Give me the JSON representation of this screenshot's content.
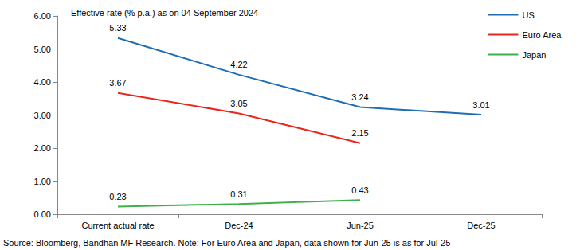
{
  "chart_data": {
    "type": "line",
    "title": "Effective rate (% p.a.) as on 04 September 2024",
    "annotations": [
      "Source: Bloomberg, Bandhan MF Research. Note: For Euro Area and Japan, data shown for Jun-25 is as for Jul-25"
    ],
    "categories": [
      "Current actual rate",
      "Dec-24",
      "Jun-25",
      "Dec-25"
    ],
    "series": [
      {
        "name": "US",
        "color": "#1F6DB5",
        "values": [
          5.33,
          4.22,
          3.24,
          3.01
        ]
      },
      {
        "name": "Euro Area",
        "color": "#E8261E",
        "values": [
          3.67,
          3.05,
          2.15,
          null
        ]
      },
      {
        "name": "Japan",
        "color": "#3DB04B",
        "values": [
          0.23,
          0.31,
          0.43,
          null
        ]
      }
    ],
    "ylim": [
      0,
      6
    ],
    "yticks": [
      {
        "value": 0,
        "label": "0.00"
      },
      {
        "value": 1,
        "label": "1.00"
      },
      {
        "value": 2,
        "label": "2.00"
      },
      {
        "value": 3,
        "label": "3.00"
      },
      {
        "value": 4,
        "label": "4.00"
      },
      {
        "value": 5,
        "label": "5.00"
      },
      {
        "value": 6,
        "label": "6.00"
      }
    ],
    "grid": false,
    "legend": "upper right",
    "data_labels": true,
    "marker": "none",
    "line_style": "solid"
  }
}
